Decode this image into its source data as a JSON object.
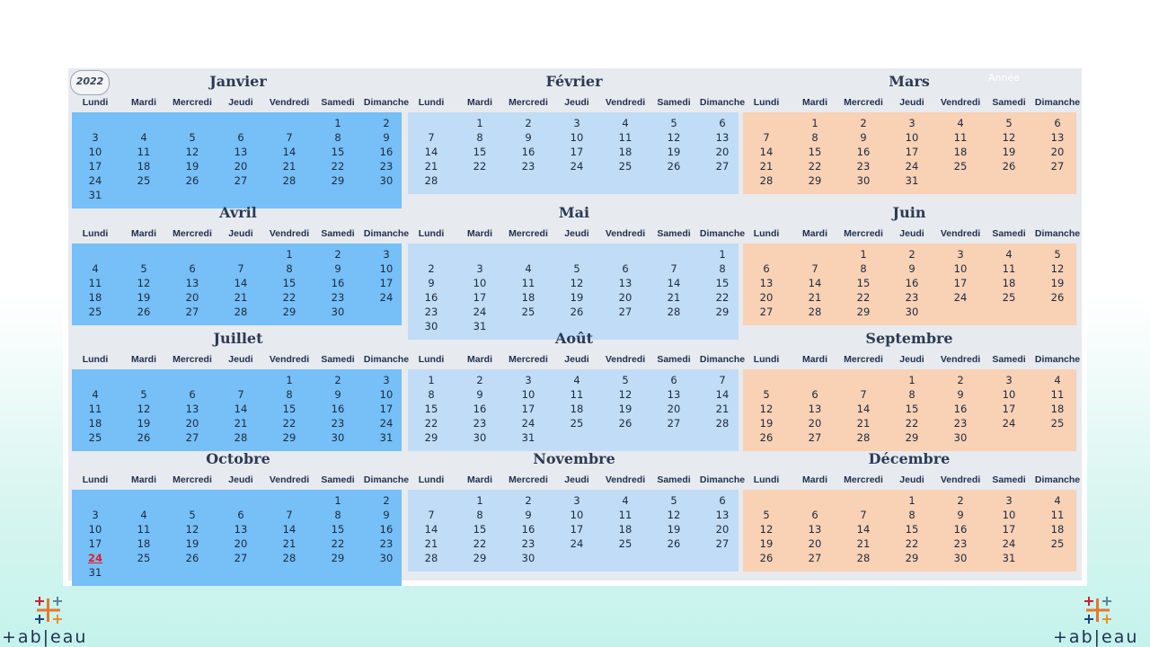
{
  "year": "2022",
  "year_label": "Année",
  "weekdays": [
    "Lundi",
    "Mardi",
    "Mercredi",
    "Jeudi",
    "Vendredi",
    "Samedi",
    "Dimanche"
  ],
  "colors": {
    "col1": "#76bff7",
    "col2": "#c1dcf6",
    "col3": "#f9d1b5",
    "today": "#e01c2d"
  },
  "today": {
    "month_index": 9,
    "day": 24
  },
  "months": [
    {
      "name": "Janvier",
      "start": 5,
      "days": 31
    },
    {
      "name": "Février",
      "start": 1,
      "days": 28
    },
    {
      "name": "Mars",
      "start": 1,
      "days": 31
    },
    {
      "name": "Avril",
      "start": 4,
      "days": 30
    },
    {
      "name": "Mai",
      "start": 6,
      "days": 31
    },
    {
      "name": "Juin",
      "start": 2,
      "days": 30
    },
    {
      "name": "Juillet",
      "start": 4,
      "days": 31
    },
    {
      "name": "Août",
      "start": 0,
      "days": 31
    },
    {
      "name": "Septembre",
      "start": 3,
      "days": 30
    },
    {
      "name": "Octobre",
      "start": 5,
      "days": 31
    },
    {
      "name": "Novembre",
      "start": 1,
      "days": 30
    },
    {
      "name": "Décembre",
      "start": 3,
      "days": 31
    }
  ],
  "logos": {
    "left": "+ab|eau",
    "right": "+ab|eau"
  }
}
